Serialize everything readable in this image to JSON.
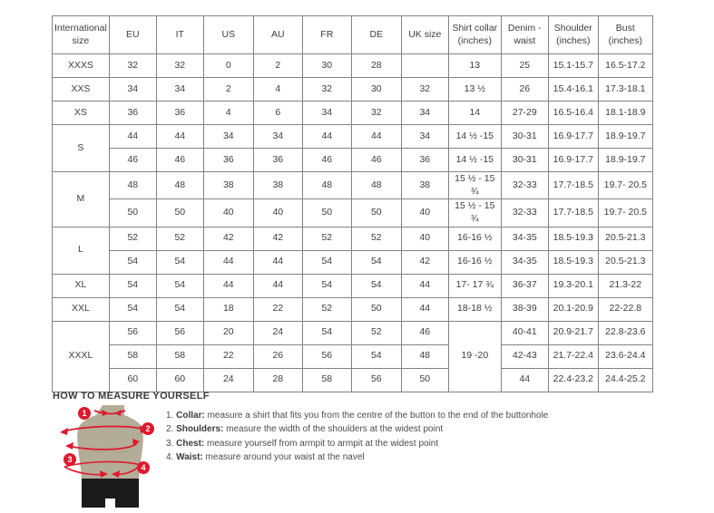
{
  "colors": {
    "accent_red": "#e0182d",
    "torso": "#b3ac97",
    "shorts": "#1b1b1b",
    "table_border": "#828282",
    "text": "#3e3e3e"
  },
  "table": {
    "columns": [
      "International size",
      "EU",
      "IT",
      "US",
      "AU",
      "FR",
      "DE",
      "UK size",
      "Shirt collar (inches)",
      "Denim - waist",
      "Shoulder (inches)",
      "Bust (inches)"
    ],
    "groups": [
      {
        "size": "XXXS",
        "rows": [
          [
            "32",
            "32",
            "0",
            "2",
            "30",
            "28",
            "",
            "13",
            "25",
            "15.1-15.7",
            "16.5-17.2"
          ]
        ]
      },
      {
        "size": "XXS",
        "rows": [
          [
            "34",
            "34",
            "2",
            "4",
            "32",
            "30",
            "32",
            "13 ½",
            "26",
            "15.4-16.1",
            "17.3-18.1"
          ]
        ]
      },
      {
        "size": "XS",
        "rows": [
          [
            "36",
            "36",
            "4",
            "6",
            "34",
            "32",
            "34",
            "14",
            "27-29",
            "16.5-16.4",
            "18.1-18.9"
          ]
        ]
      },
      {
        "size": "S",
        "rows": [
          [
            "44",
            "44",
            "34",
            "34",
            "44",
            "44",
            "34",
            "14 ½ -15",
            "30-31",
            "16.9-17.7",
            "18.9-19.7"
          ],
          [
            "46",
            "46",
            "36",
            "36",
            "46",
            "46",
            "36",
            "14 ½ -15",
            "30-31",
            "16.9-17.7",
            "18.9-19.7"
          ]
        ]
      },
      {
        "size": "M",
        "rows": [
          [
            "48",
            "48",
            "38",
            "38",
            "48",
            "48",
            "38",
            "15 ½ - 15 ¾",
            "32-33",
            "17.7-18.5",
            "19.7- 20.5"
          ],
          [
            "50",
            "50",
            "40",
            "40",
            "50",
            "50",
            "40",
            "15 ½ - 15 ¾",
            "32-33",
            "17.7-18.5",
            "19.7- 20.5"
          ]
        ]
      },
      {
        "size": "L",
        "rows": [
          [
            "52",
            "52",
            "42",
            "42",
            "52",
            "52",
            "40",
            "16-16 ½",
            "34-35",
            "18.5-19.3",
            "20.5-21.3"
          ],
          [
            "54",
            "54",
            "44",
            "44",
            "54",
            "54",
            "42",
            "16-16 ½",
            "34-35",
            "18.5-19.3",
            "20.5-21.3"
          ]
        ]
      },
      {
        "size": "XL",
        "rows": [
          [
            "54",
            "54",
            "44",
            "44",
            "54",
            "54",
            "44",
            "17- 17 ¾",
            "36-37",
            "19.3-20.1",
            "21.3-22"
          ]
        ]
      },
      {
        "size": "XXL",
        "rows": [
          [
            "54",
            "54",
            "18",
            "22",
            "52",
            "50",
            "44",
            "18-18 ½",
            "38-39",
            "20.1-20.9",
            "22-22.8"
          ]
        ]
      },
      {
        "size": "XXXL",
        "rows": [
          [
            "56",
            "56",
            "20",
            "24",
            "54",
            "52",
            "46",
            {
              "t": "19 -20",
              "rs": 3
            },
            "40-41",
            "20.9-21.7",
            "22.8-23.6"
          ],
          [
            "58",
            "58",
            "22",
            "26",
            "56",
            "54",
            "48",
            null,
            "42-43",
            "21.7-22.4",
            "23.6-24.4"
          ],
          [
            "60",
            "60",
            "24",
            "28",
            "58",
            "56",
            "50",
            null,
            "44",
            "22.4-23.2",
            "24.4-25.2"
          ]
        ]
      }
    ]
  },
  "measure": {
    "heading": "HOW TO MEASURE YOURSELF",
    "badges": [
      "1",
      "2",
      "3",
      "4"
    ],
    "steps": [
      {
        "num": "1.",
        "term": "Collar:",
        "desc": "measure a shirt that fits you from the centre of the button to the end of the buttonhole"
      },
      {
        "num": "2.",
        "term": "Shoulders:",
        "desc": "measure the width of the shoulders at the widest point"
      },
      {
        "num": "3.",
        "term": "Chest:",
        "desc": "measure yourself from armpit to armpit at the widest point"
      },
      {
        "num": "4.",
        "term": "Waist:",
        "desc": "measure around your waist at the navel"
      }
    ]
  }
}
